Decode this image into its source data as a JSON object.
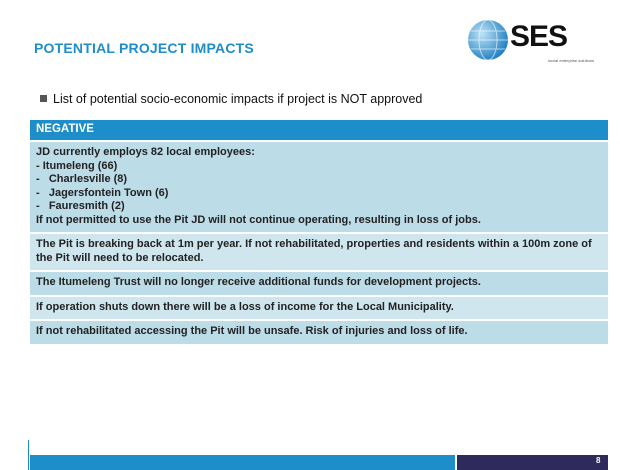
{
  "header": {
    "title": "POTENTIAL PROJECT IMPACTS",
    "logo": "SES",
    "logo_tagline": "social enterprise solutions"
  },
  "bullet": "List of potential socio-economic impacts if project is NOT approved",
  "table": {
    "header": "NEGATIVE",
    "rows": [
      [
        "JD currently employs 82 local employees:",
        "- Itumeleng (66)",
        "-   Charlesville (8)",
        "-   Jagersfontein Town (6)",
        "-   Fauresmith (2)",
        "If not permitted to use the Pit JD will not continue operating, resulting in loss of jobs."
      ],
      [
        "The Pit is breaking back at 1m per year. If not rehabilitated, properties and residents within a 100m zone of the Pit will need to be relocated."
      ],
      [
        "The Itumeleng Trust will no longer receive additional funds for development projects."
      ],
      [
        "If operation shuts down there will be a loss of income for the Local Municipality."
      ],
      [
        "If not rehabilitated accessing the Pit will be unsafe. Risk of injuries and loss of life."
      ]
    ]
  },
  "footer": {
    "page": "8"
  }
}
